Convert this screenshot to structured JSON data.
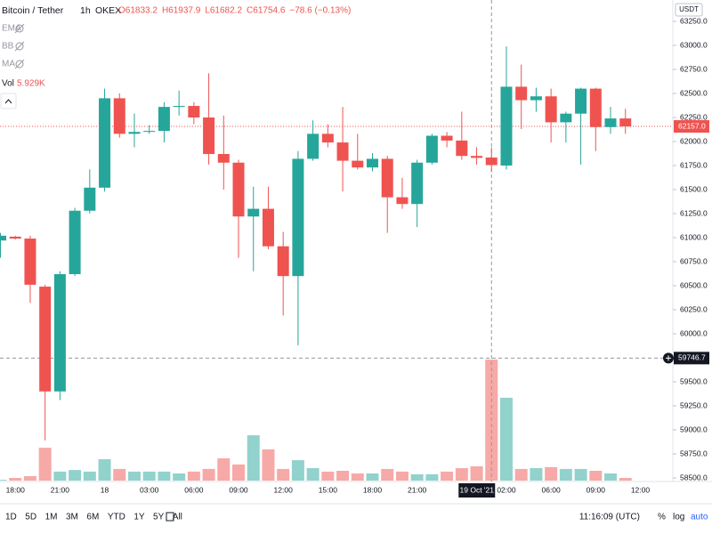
{
  "header": {
    "symbol": "Bitcoin / Tether",
    "interval": "1h",
    "exchange": "OKEX",
    "ohlc": [
      "O61833.2",
      "H61937.9",
      "L61682.2",
      "C61754.6"
    ],
    "change": "−78.6 (−0.13%)",
    "indicators": [
      "EMA",
      "BB",
      "MA"
    ],
    "volume_name": "Vol",
    "volume_value": "5.929K"
  },
  "chart_data": {
    "type": "candlestick",
    "axis_label": "USDT",
    "categories": [
      null,
      "18:00",
      null,
      null,
      "21:00",
      null,
      null,
      "18",
      null,
      null,
      "03:00",
      null,
      null,
      "06:00",
      null,
      null,
      "09:00",
      null,
      null,
      "12:00",
      null,
      null,
      "15:00",
      null,
      null,
      "18:00",
      null,
      null,
      "21:00",
      null,
      null,
      null,
      null,
      "19 Oct '21",
      "02:00",
      null,
      null,
      "06:00",
      null,
      null,
      "09:00",
      null,
      null,
      "12:00"
    ],
    "open": [
      60970,
      61010,
      60990,
      60490,
      59400,
      60620,
      61280,
      61520,
      62450,
      62080,
      62100,
      62110,
      62360,
      62370,
      62250,
      61870,
      61780,
      61220,
      61300,
      60910,
      60600,
      61820,
      62080,
      61990,
      61800,
      61730,
      61820,
      61420,
      61350,
      61780,
      62060,
      62010,
      61850,
      61833.2,
      61750,
      62570,
      62430,
      62470,
      62200,
      62290,
      62550,
      62150,
      62240,
      null
    ],
    "high": [
      61050,
      61020,
      61020,
      60510,
      60650,
      61310,
      61710,
      62550,
      62500,
      62290,
      62170,
      62410,
      62530,
      62410,
      62710,
      62270,
      61810,
      61530,
      61530,
      61060,
      61900,
      62220,
      62180,
      62360,
      62080,
      61880,
      61850,
      61620,
      61810,
      62080,
      62100,
      62310,
      61940,
      61937.9,
      62990,
      62800,
      62560,
      62550,
      62310,
      62560,
      62560,
      62360,
      62340,
      null
    ],
    "low": [
      60790,
      60980,
      60320,
      58890,
      59310,
      60600,
      61250,
      61480,
      62040,
      61940,
      62080,
      61990,
      62270,
      62180,
      61760,
      61500,
      60790,
      60650,
      60880,
      60190,
      59880,
      61800,
      61940,
      61480,
      61710,
      61690,
      61050,
      61300,
      61110,
      61760,
      61940,
      61810,
      61760,
      61682.2,
      61710,
      62130,
      62310,
      61990,
      61990,
      61760,
      61900,
      62080,
      62080,
      null
    ],
    "close": [
      61020,
      60990,
      60510,
      59400,
      60620,
      61280,
      61520,
      62450,
      62080,
      62100,
      62110,
      62360,
      62370,
      62250,
      61870,
      61780,
      61220,
      61300,
      60910,
      60600,
      61820,
      62080,
      61990,
      61800,
      61730,
      61820,
      61420,
      61350,
      61780,
      62060,
      62010,
      61850,
      61830,
      61754.6,
      62570,
      62430,
      62470,
      62200,
      62290,
      62550,
      62150,
      62240,
      62157,
      null
    ],
    "volume": [
      40,
      130,
      220,
      1610,
      440,
      520,
      440,
      1050,
      570,
      440,
      440,
      440,
      350,
      440,
      570,
      1090,
      790,
      2220,
      1530,
      570,
      1000,
      610,
      440,
      480,
      350,
      350,
      570,
      440,
      310,
      310,
      440,
      610,
      700,
      5929,
      4060,
      570,
      610,
      660,
      570,
      570,
      480,
      350,
      130,
      null
    ],
    "up_color": "#26a69a",
    "down_color": "#ef5350",
    "ylim": [
      58500,
      63250
    ],
    "yticks": [
      {
        "value": 58500,
        "label": "58500.0"
      },
      {
        "value": 58750,
        "label": "58750.0"
      },
      {
        "value": 59000,
        "label": "59000.0"
      },
      {
        "value": 59250,
        "label": "59250.0"
      },
      {
        "value": 59500,
        "label": "59500.0"
      },
      {
        "value": 59750,
        "label": "59750.0"
      },
      {
        "value": 60000,
        "label": "60000.0"
      },
      {
        "value": 60250,
        "label": "60250.0"
      },
      {
        "value": 60500,
        "label": "60500.0"
      },
      {
        "value": 60750,
        "label": "60750.0"
      },
      {
        "value": 61000,
        "label": "61000.0"
      },
      {
        "value": 61250,
        "label": "61250.0"
      },
      {
        "value": 61500,
        "label": "61500.0"
      },
      {
        "value": 61750,
        "label": "61750.0"
      },
      {
        "value": 62000,
        "label": "62000.0"
      },
      {
        "value": 62250,
        "label": "62250.0"
      },
      {
        "value": 62500,
        "label": "62500.0"
      },
      {
        "value": 62750,
        "label": "62750.0"
      },
      {
        "value": 63000,
        "label": "63000.0"
      },
      {
        "value": 63250,
        "label": "63250.0"
      }
    ],
    "last_price": {
      "value": 62157,
      "label": "62157.0"
    },
    "crosshair": {
      "time": "19 Oct '21",
      "price": 59746.7
    }
  },
  "toolbar": {
    "ranges": [
      "1D",
      "5D",
      "1M",
      "3M",
      "6M",
      "YTD",
      "1Y",
      "5Y",
      "All"
    ],
    "clock": "11:16:09 (UTC)",
    "options": [
      "%",
      "log",
      "auto"
    ]
  }
}
